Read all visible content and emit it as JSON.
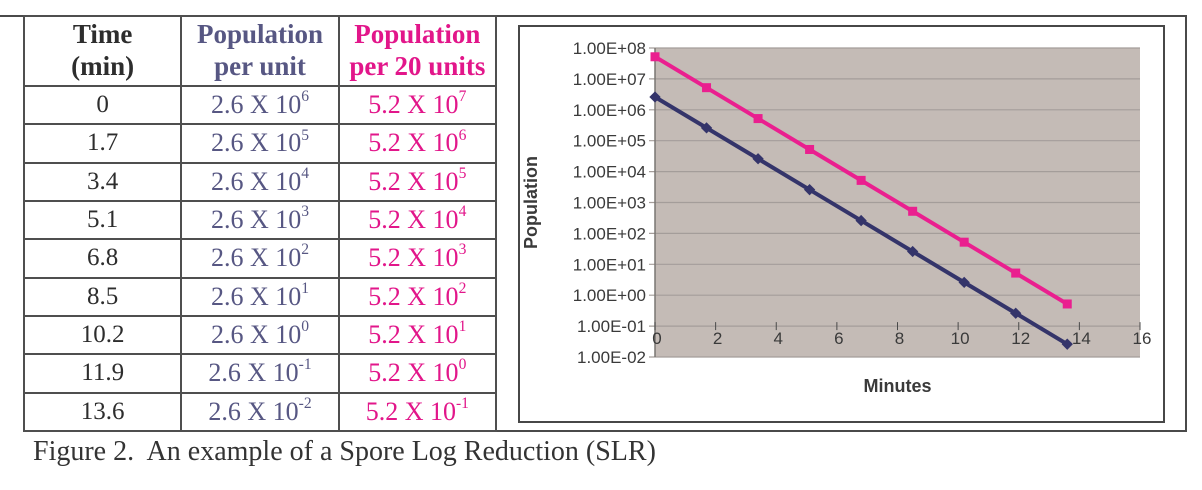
{
  "figure": {
    "caption": "Figure 2.  An example of a Spore Log Reduction (SLR)"
  },
  "table": {
    "headers": [
      {
        "line1": "Time",
        "line2": "(min)",
        "color": "#2d2d2d"
      },
      {
        "line1": "Population",
        "line2": "per unit",
        "color": "#575783"
      },
      {
        "line1": "Population",
        "line2": "per 20 units",
        "color": "#e2168a"
      }
    ],
    "colors": {
      "time": "#2d2d2d",
      "per_unit": "#575783",
      "per_20": "#e2168a"
    },
    "rows": [
      {
        "time": "0",
        "per_unit": "2.6 X 10^6",
        "per_20": "5.2 X 10^7"
      },
      {
        "time": "1.7",
        "per_unit": "2.6 X 10^5",
        "per_20": "5.2 X 10^6"
      },
      {
        "time": "3.4",
        "per_unit": "2.6 X 10^4",
        "per_20": "5.2 X 10^5"
      },
      {
        "time": "5.1",
        "per_unit": "2.6 X 10^3",
        "per_20": "5.2 X 10^4"
      },
      {
        "time": "6.8",
        "per_unit": "2.6 X 10^2",
        "per_20": "5.2 X 10^3"
      },
      {
        "time": "8.5",
        "per_unit": "2.6 X 10^1",
        "per_20": "5.2 X 10^2"
      },
      {
        "time": "10.2",
        "per_unit": "2.6 X 10^0",
        "per_20": "5.2 X 10^1"
      },
      {
        "time": "11.9",
        "per_unit": "2.6 X 10^-1",
        "per_20": "5.2 X 10^0"
      },
      {
        "time": "13.6",
        "per_unit": "2.6 X 10^-2",
        "per_20": "5.2 X 10^-1"
      }
    ]
  },
  "chart_data": {
    "type": "line",
    "x": [
      0,
      1.7,
      3.4,
      5.1,
      6.8,
      8.5,
      10.2,
      11.9,
      13.6
    ],
    "series": [
      {
        "name": "Population per unit",
        "marker": "diamond",
        "color": "#34346a",
        "values": [
          2600000,
          260000,
          26000,
          2600,
          260,
          26,
          2.6,
          0.26,
          0.026
        ]
      },
      {
        "name": "Population per 20 units",
        "marker": "square",
        "color": "#ea1f8f",
        "values": [
          52000000,
          5200000,
          520000,
          52000,
          5200,
          520,
          52,
          5.2,
          0.52
        ]
      }
    ],
    "xlabel": "Minutes",
    "ylabel": "Population",
    "y_scale": "log",
    "y_tick_labels": [
      "1.00E+08",
      "1.00E+07",
      "1.00E+06",
      "1.00E+05",
      "1.00E+04",
      "1.00E+03",
      "1.00E+02",
      "1.00E+01",
      "1.00E+00",
      "1.00E-01",
      "1.00E-02"
    ],
    "x_tick_labels": [
      "0",
      "2",
      "4",
      "6",
      "8",
      "10",
      "12",
      "14",
      "16"
    ],
    "x_range": [
      0,
      16
    ],
    "y_exponent_range": [
      8,
      -2
    ],
    "x_axis_crosses_at": "1.00E-01",
    "grid": true,
    "legend": "none",
    "plot_bg": "#c4bbb6",
    "grid_color": "#a49d9a",
    "axis_color": "#7a7672",
    "text_color": "#3a3a3a"
  }
}
